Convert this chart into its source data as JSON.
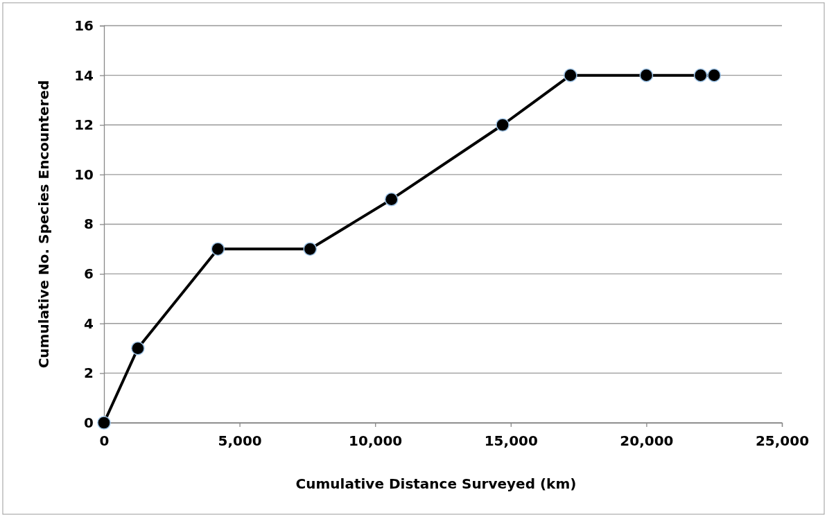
{
  "chart_data": {
    "type": "line",
    "xlabel": "Cumulative Distance Surveyed (km)",
    "ylabel": "Cumulative  No. Species Encountered",
    "x": [
      0,
      1250,
      4200,
      7600,
      10600,
      14700,
      17200,
      20000,
      22000,
      22500
    ],
    "series": [
      {
        "color": "#000000",
        "values": [
          0,
          3,
          7,
          7,
          9,
          12,
          14,
          14,
          14,
          14
        ]
      }
    ],
    "xlim": [
      0,
      25000
    ],
    "xticks": [
      {
        "value": 0,
        "label": "0"
      },
      {
        "value": 5000,
        "label": "5,000"
      },
      {
        "value": 10000,
        "label": "10,000"
      },
      {
        "value": 15000,
        "label": "15,000"
      },
      {
        "value": 20000,
        "label": "20,000"
      },
      {
        "value": 25000,
        "label": "25,000"
      }
    ],
    "ylim": [
      0,
      16
    ],
    "yticks": [
      0,
      2,
      4,
      6,
      8,
      10,
      12,
      14,
      16
    ],
    "grid": "y",
    "marker": "circle",
    "line_style": "solid"
  }
}
